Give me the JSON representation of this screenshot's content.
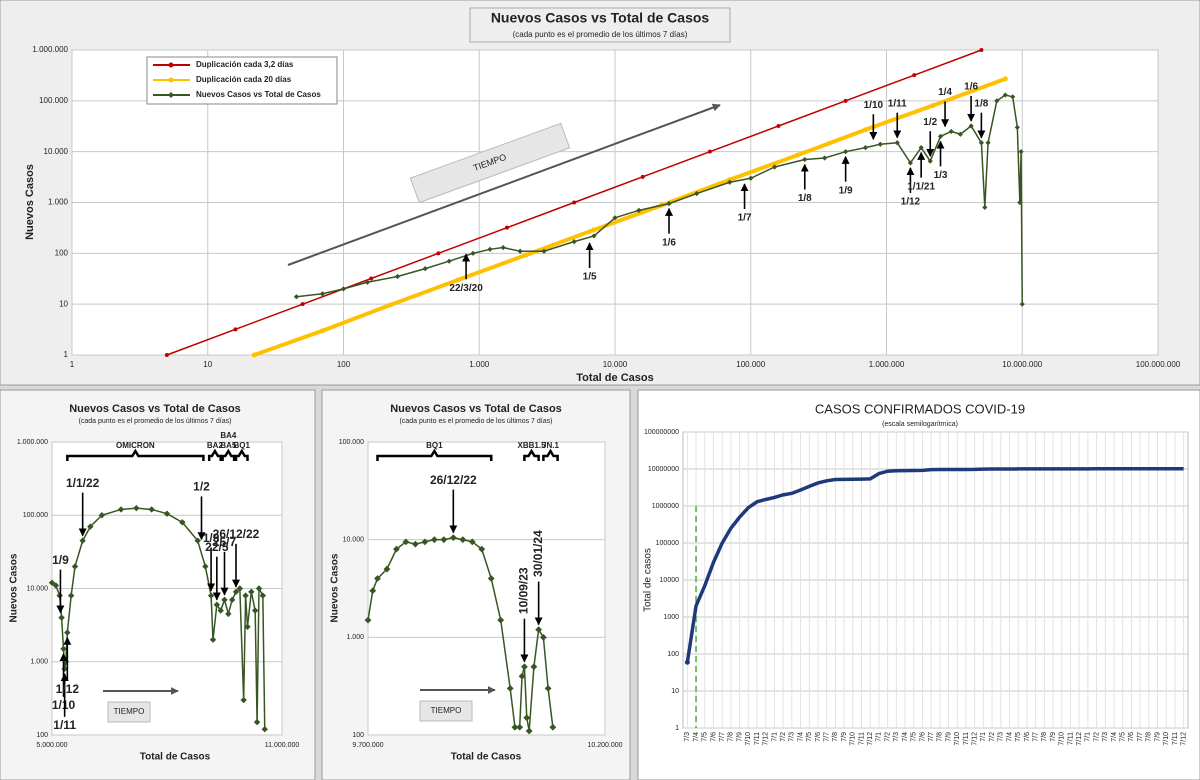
{
  "chart_data": [
    {
      "type": "line",
      "title": "Nuevos Casos vs Total de Casos",
      "subtitle": "(cada punto es el promedio de los últimos 7 días)",
      "x_label": "Total de Casos",
      "y_label": "Nuevos Casos",
      "xlog": true,
      "ylog": true,
      "grid": true,
      "xlim": [
        1,
        100000000
      ],
      "ylim": [
        1,
        1000000
      ],
      "xticks": [
        1,
        10,
        100,
        {
          "value": 1000,
          "label": "1.000"
        },
        {
          "value": 10000,
          "label": "10.000"
        },
        {
          "value": 100000,
          "label": "100.000"
        },
        {
          "value": 1000000,
          "label": "1.000.000"
        },
        {
          "value": 10000000,
          "label": "10.000.000"
        },
        {
          "value": 100000000,
          "label": "100.000.000"
        }
      ],
      "yticks": [
        1,
        10,
        100,
        {
          "value": 1000,
          "label": "1.000"
        },
        {
          "value": 10000,
          "label": "10.000"
        },
        {
          "value": 100000,
          "label": "100.000"
        },
        {
          "value": 1000000,
          "label": "1.000.000"
        }
      ],
      "tiempo_label": "TIEMPO",
      "series": [
        {
          "name": "Duplicación cada 3,2 días",
          "color": "#c00000",
          "x": [
            5,
            16,
            50,
            160,
            500,
            1600,
            5000,
            16000,
            50000,
            160000,
            500000,
            1600000,
            5000000
          ],
          "values": [
            1,
            3.2,
            10,
            32,
            100,
            320,
            1000,
            3200,
            10000,
            32000,
            100000,
            320000,
            1000000
          ]
        },
        {
          "name": "Duplicación cada 20 días",
          "color": "#ffc000",
          "x": [
            22,
            70,
            220,
            700,
            2200,
            7000,
            22000,
            70000,
            220000,
            700000,
            2200000,
            7500000
          ],
          "values": [
            1,
            3,
            9.6,
            30,
            92,
            290,
            880,
            2800,
            8500,
            27000,
            81000,
            270000
          ]
        },
        {
          "name": "Nuevos Casos vs Total de Casos",
          "color": "#375623",
          "x": [
            45,
            70,
            100,
            150,
            250,
            400,
            600,
            900,
            1200,
            1500,
            2000,
            3000,
            5000,
            7000,
            10000,
            15000,
            25000,
            40000,
            70000,
            100000,
            150000,
            250000,
            350000,
            500000,
            700000,
            900000,
            1200000,
            1500000,
            1800000,
            2100000,
            2500000,
            3000000,
            3500000,
            4200000,
            5000000,
            5300000,
            5600000,
            6500000,
            7500000,
            8500000,
            9200000,
            9600000,
            9800000,
            10000000
          ],
          "values": [
            14,
            16,
            20,
            27,
            35,
            50,
            70,
            100,
            120,
            130,
            110,
            110,
            170,
            220,
            500,
            700,
            950,
            1500,
            2500,
            3000,
            5000,
            7000,
            7500,
            10000,
            12000,
            14000,
            15000,
            6000,
            12000,
            6500,
            20000,
            25000,
            22000,
            32000,
            15000,
            800,
            15000,
            100000,
            130000,
            120000,
            30000,
            1000,
            10000,
            10
          ]
        }
      ],
      "annotations": [
        {
          "text": "22/3/20",
          "x": 800,
          "y": 120,
          "side": "below"
        },
        {
          "text": "1/5",
          "x": 6500,
          "y": 200,
          "side": "below"
        },
        {
          "text": "1/6",
          "x": 25000,
          "y": 950,
          "side": "below"
        },
        {
          "text": "1/7",
          "x": 90000,
          "y": 2900,
          "side": "below"
        },
        {
          "text": "1/8",
          "x": 250000,
          "y": 7000,
          "side": "below"
        },
        {
          "text": "1/9",
          "x": 500000,
          "y": 10000,
          "side": "below"
        },
        {
          "text": "1/10",
          "x": 800000,
          "y": 14000,
          "side": "above"
        },
        {
          "text": "1/11",
          "x": 1200000,
          "y": 15000,
          "side": "above"
        },
        {
          "text": "1/12",
          "x": 1500000,
          "y": 6000,
          "side": "below"
        },
        {
          "text": "1/1/21",
          "x": 1800000,
          "y": 12000,
          "side": "below"
        },
        {
          "text": "1/2",
          "x": 2100000,
          "y": 6500,
          "side": "above"
        },
        {
          "text": "1/3",
          "x": 2500000,
          "y": 20000,
          "side": "below"
        },
        {
          "text": "1/4",
          "x": 2700000,
          "y": 25000,
          "side": "above"
        },
        {
          "text": "1/6",
          "x": 4200000,
          "y": 32000,
          "side": "above"
        },
        {
          "text": "1/8",
          "x": 5000000,
          "y": 15000,
          "side": "above"
        }
      ]
    },
    {
      "type": "line",
      "title": "Nuevos Casos vs Total de Casos",
      "subtitle": "(cada punto es el promedio de los últimos 7 días)",
      "x_label": "Total de Casos",
      "y_label": "Nuevos Casos",
      "xlog": false,
      "ylog": true,
      "grid": true,
      "xlim": [
        5000000,
        11000000
      ],
      "ylim": [
        100,
        1000000
      ],
      "xticks": [
        {
          "value": 5000000,
          "label": "5.000.000"
        },
        {
          "value": 11000000,
          "label": "11.000.000"
        }
      ],
      "yticks": [
        100,
        {
          "value": 1000,
          "label": "1.000"
        },
        {
          "value": 10000,
          "label": "10.000"
        },
        {
          "value": 100000,
          "label": "100.000"
        },
        {
          "value": 1000000,
          "label": "1.000.000"
        }
      ],
      "tiempo_label": "TIEMPO",
      "series": [
        {
          "name": "Nuevos Casos vs Total de Casos",
          "color": "#375623",
          "x": [
            5000000,
            5100000,
            5200000,
            5250000,
            5300000,
            5330000,
            5360000,
            5400000,
            5500000,
            5600000,
            5800000,
            6000000,
            6300000,
            6800000,
            7200000,
            7600000,
            8000000,
            8400000,
            8800000,
            9000000,
            9150000,
            9200000,
            9300000,
            9400000,
            9500000,
            9600000,
            9700000,
            9800000,
            9900000,
            10000000,
            10050000,
            10100000,
            10200000,
            10300000,
            10350000,
            10400000,
            10500000,
            10550000
          ],
          "values": [
            12000,
            11000,
            8000,
            4000,
            1500,
            800,
            1000,
            2500,
            8000,
            20000,
            45000,
            70000,
            100000,
            120000,
            125000,
            120000,
            105000,
            80000,
            45000,
            20000,
            8000,
            2000,
            6000,
            5000,
            7000,
            4500,
            7000,
            9000,
            10000,
            300,
            8000,
            3000,
            9000,
            5000,
            150,
            10000,
            8000,
            120
          ]
        }
      ],
      "brackets": [
        {
          "label": "OMICRON",
          "x": [
            5400000,
            8950000
          ]
        },
        {
          "label": "BA2",
          "x": [
            9100000,
            9400000
          ]
        },
        {
          "label": "BA5",
          "top_label": "BA4",
          "x": [
            9450000,
            9750000
          ]
        },
        {
          "label": "BQ1",
          "x": [
            9800000,
            10100000
          ]
        }
      ],
      "annotations": [
        {
          "text": "1/9",
          "x": 5220000,
          "y": 4000,
          "side": "above"
        },
        {
          "text": "1/10",
          "x": 5300000,
          "y": 1500,
          "side": "below"
        },
        {
          "text": "1/11",
          "x": 5330000,
          "y": 800,
          "side": "below"
        },
        {
          "text": "1/12",
          "x": 5400000,
          "y": 2500,
          "side": "below"
        },
        {
          "text": "1/1/22",
          "x": 5800000,
          "y": 45000,
          "side": "above"
        },
        {
          "text": "1/2",
          "x": 8900000,
          "y": 40000,
          "side": "above"
        },
        {
          "text": "1/3",
          "x": 9150000,
          "y": 8000,
          "side": "above"
        },
        {
          "text": "22/5",
          "x": 9300000,
          "y": 6000,
          "side": "above"
        },
        {
          "text": "25/7",
          "x": 9500000,
          "y": 7000,
          "side": "above"
        },
        {
          "text": "26/12/22",
          "x": 9800000,
          "y": 9000,
          "side": "above"
        }
      ]
    },
    {
      "type": "line",
      "title": "Nuevos Casos vs Total de Casos",
      "subtitle": "(cada punto es el promedio de los últimos 7 días)",
      "x_label": "Total de Casos",
      "y_label": "Nuevos Casos",
      "xlog": false,
      "ylog": true,
      "grid": true,
      "xlim": [
        9700000,
        10200000
      ],
      "ylim": [
        100,
        100000
      ],
      "xticks": [
        {
          "value": 9700000,
          "label": "9.700.000"
        },
        {
          "value": 10200000,
          "label": "10.200.000"
        }
      ],
      "yticks": [
        100,
        {
          "value": 1000,
          "label": "1.000"
        },
        {
          "value": 10000,
          "label": "10.000"
        },
        {
          "value": 100000,
          "label": "100.000"
        }
      ],
      "tiempo_label": "TIEMPO",
      "series": [
        {
          "name": "Nuevos Casos vs Total de Casos",
          "color": "#375623",
          "x": [
            9700000,
            9710000,
            9720000,
            9740000,
            9760000,
            9780000,
            9800000,
            9820000,
            9840000,
            9860000,
            9880000,
            9900000,
            9920000,
            9940000,
            9960000,
            9980000,
            10000000,
            10010000,
            10020000,
            10025000,
            10030000,
            10035000,
            10040000,
            10050000,
            10060000,
            10070000,
            10080000,
            10090000
          ],
          "values": [
            1500,
            3000,
            4000,
            5000,
            8000,
            9500,
            9000,
            9500,
            10000,
            10000,
            10500,
            10000,
            9500,
            8000,
            4000,
            1500,
            300,
            120,
            120,
            400,
            500,
            150,
            110,
            500,
            1200,
            1000,
            300,
            120
          ]
        }
      ],
      "brackets": [
        {
          "label": "BQ1",
          "x": [
            9720000,
            9960000
          ]
        },
        {
          "label": "XBB1.5",
          "x": [
            10030000,
            10060000
          ]
        },
        {
          "label": "JN.1",
          "x": [
            10070000,
            10100000
          ]
        }
      ],
      "annotations": [
        {
          "text": "26/12/22",
          "x": 9880000,
          "y": 10500,
          "side": "above"
        },
        {
          "text": "10/09/23",
          "x": 10030000,
          "y": 500,
          "side": "above",
          "rotate": true
        },
        {
          "text": "30/01/24",
          "x": 10060000,
          "y": 1200,
          "side": "above",
          "rotate": true
        }
      ]
    },
    {
      "type": "line",
      "title": "CASOS CONFIRMADOS COVID-19",
      "subtitle": "(escala semilogarítmica)",
      "y_label": "Total de casos",
      "ylog": true,
      "grid": true,
      "color": "#1f3a7a",
      "reference_x": "7/4",
      "ylim": [
        1,
        100000000
      ],
      "yticks": [
        1,
        10,
        100,
        1000,
        10000,
        100000,
        1000000,
        10000000,
        100000000
      ],
      "categories": [
        "7/3",
        "7/4",
        "7/5",
        "7/6",
        "7/7",
        "7/8",
        "7/9",
        "7/10",
        "7/11",
        "7/12",
        "7/1",
        "7/2",
        "7/3",
        "7/4",
        "7/5",
        "7/6",
        "7/7",
        "7/8",
        "7/9",
        "7/10",
        "7/11",
        "7/12",
        "7/1",
        "7/2",
        "7/3",
        "7/4",
        "7/5",
        "7/6",
        "7/7",
        "7/8",
        "7/9",
        "7/10",
        "7/11",
        "7/12",
        "7/1",
        "7/2",
        "7/3",
        "7/4",
        "7/5",
        "7/6",
        "7/7",
        "7/8",
        "7/9",
        "7/10",
        "7/11",
        "7/12",
        "7/1",
        "7/2",
        "7/3",
        "7/4",
        "7/5",
        "7/6",
        "7/7",
        "7/8",
        "7/9",
        "7/10",
        "7/11",
        "7/12"
      ],
      "values": [
        60,
        2000,
        7000,
        30000,
        100000,
        250000,
        500000,
        900000,
        1300000,
        1500000,
        1700000,
        2000000,
        2200000,
        2700000,
        3400000,
        4200000,
        4800000,
        5200000,
        5250000,
        5300000,
        5320000,
        5400000,
        7500000,
        8700000,
        8950000,
        9050000,
        9100000,
        9200000,
        9600000,
        9700000,
        9710000,
        9720000,
        9730000,
        9750000,
        9950000,
        10000000,
        10020000,
        10030000,
        10040000,
        10050000,
        10060000,
        10070000,
        10080000,
        10090000,
        10100000,
        10100000,
        10110000,
        10120000,
        10120000,
        10130000,
        10130000,
        10140000,
        10140000,
        10150000,
        10150000,
        10150000,
        10160000,
        10160000
      ]
    }
  ]
}
